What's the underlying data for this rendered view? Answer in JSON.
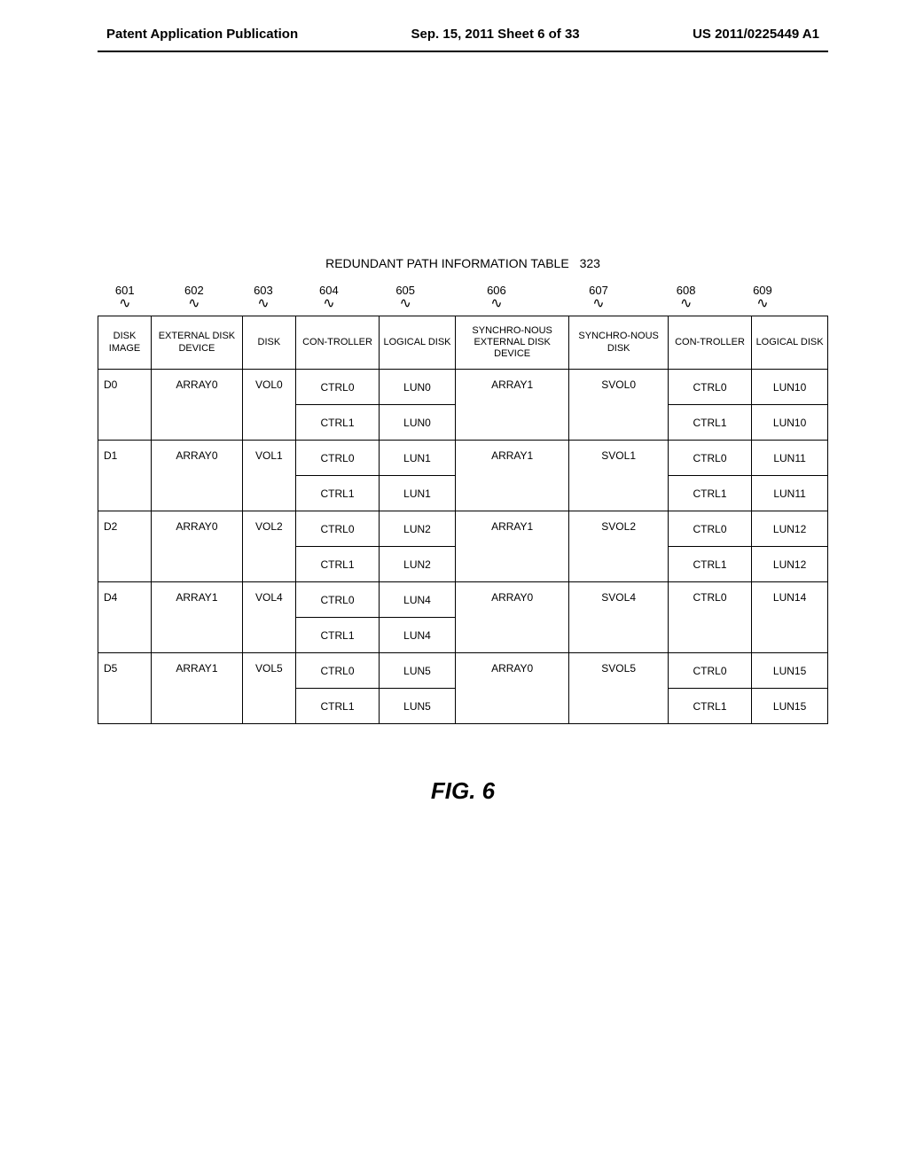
{
  "header": {
    "left": "Patent Application Publication",
    "center": "Sep. 15, 2011  Sheet 6 of 33",
    "right": "US 2011/0225449 A1"
  },
  "table": {
    "title": "REDUNDANT PATH INFORMATION TABLE",
    "titleNumber": "323",
    "colRefs": [
      "601",
      "602",
      "603",
      "604",
      "605",
      "606",
      "607",
      "608",
      "609"
    ],
    "headers": [
      "DISK IMAGE",
      "EXTERNAL DISK DEVICE",
      "DISK",
      "CON-TROLLER",
      "LOGICAL DISK",
      "SYNCHRO-NOUS EXTERNAL DISK DEVICE",
      "SYNCHRO-NOUS DISK",
      "CON-TROLLER",
      "LOGICAL DISK"
    ],
    "groups": [
      {
        "diskImage": "D0",
        "extDisk": "ARRAY0",
        "disk": "VOL0",
        "syncExt": "ARRAY1",
        "syncDisk": "SVOL0",
        "rows": [
          {
            "ctrl": "CTRL0",
            "lun": "LUN0",
            "ctrl2": "CTRL0",
            "lun2": "LUN10"
          },
          {
            "ctrl": "CTRL1",
            "lun": "LUN0",
            "ctrl2": "CTRL1",
            "lun2": "LUN10"
          }
        ]
      },
      {
        "diskImage": "D1",
        "extDisk": "ARRAY0",
        "disk": "VOL1",
        "syncExt": "ARRAY1",
        "syncDisk": "SVOL1",
        "rows": [
          {
            "ctrl": "CTRL0",
            "lun": "LUN1",
            "ctrl2": "CTRL0",
            "lun2": "LUN11"
          },
          {
            "ctrl": "CTRL1",
            "lun": "LUN1",
            "ctrl2": "CTRL1",
            "lun2": "LUN11"
          }
        ]
      },
      {
        "diskImage": "D2",
        "extDisk": "ARRAY0",
        "disk": "VOL2",
        "syncExt": "ARRAY1",
        "syncDisk": "SVOL2",
        "rows": [
          {
            "ctrl": "CTRL0",
            "lun": "LUN2",
            "ctrl2": "CTRL0",
            "lun2": "LUN12"
          },
          {
            "ctrl": "CTRL1",
            "lun": "LUN2",
            "ctrl2": "CTRL1",
            "lun2": "LUN12"
          }
        ]
      },
      {
        "diskImage": "D4",
        "extDisk": "ARRAY1",
        "disk": "VOL4",
        "syncExt": "ARRAY0",
        "syncDisk": "SVOL4",
        "singleCtrl2": true,
        "rows": [
          {
            "ctrl": "CTRL0",
            "lun": "LUN4",
            "ctrl2": "CTRL0",
            "lun2": "LUN14"
          },
          {
            "ctrl": "CTRL1",
            "lun": "LUN4",
            "ctrl2": "",
            "lun2": ""
          }
        ]
      },
      {
        "diskImage": "D5",
        "extDisk": "ARRAY1",
        "disk": "VOL5",
        "syncExt": "ARRAY0",
        "syncDisk": "SVOL5",
        "rows": [
          {
            "ctrl": "CTRL0",
            "lun": "LUN5",
            "ctrl2": "CTRL0",
            "lun2": "LUN15"
          },
          {
            "ctrl": "CTRL1",
            "lun": "LUN5",
            "ctrl2": "CTRL1",
            "lun2": "LUN15"
          }
        ]
      }
    ]
  },
  "figLabel": "FIG. 6",
  "colWidths": [
    "7%",
    "12%",
    "7%",
    "11%",
    "10%",
    "15%",
    "13%",
    "11%",
    "10%"
  ]
}
